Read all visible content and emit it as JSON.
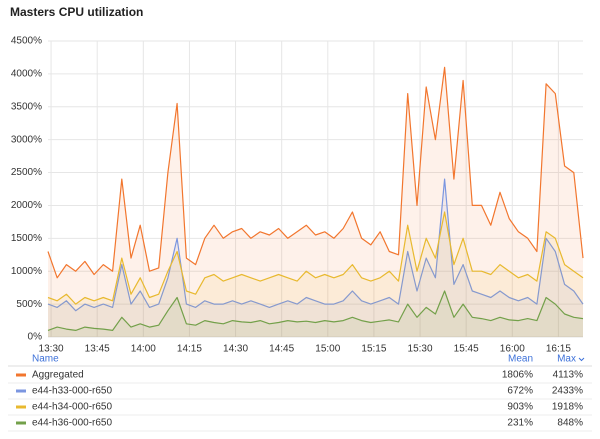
{
  "chart_data": {
    "type": "line",
    "title": "Masters CPU utilization",
    "grid": true,
    "fill_area": true,
    "x": [
      "13:29",
      "13:32",
      "13:35",
      "13:38",
      "13:41",
      "13:44",
      "13:47",
      "13:50",
      "13:53",
      "13:56",
      "13:59",
      "14:02",
      "14:05",
      "14:08",
      "14:11",
      "14:14",
      "14:17",
      "14:20",
      "14:23",
      "14:26",
      "14:29",
      "14:32",
      "14:35",
      "14:38",
      "14:41",
      "14:44",
      "14:47",
      "14:50",
      "14:53",
      "14:56",
      "14:59",
      "15:02",
      "15:05",
      "15:08",
      "15:11",
      "15:14",
      "15:17",
      "15:20",
      "15:23",
      "15:26",
      "15:29",
      "15:32",
      "15:35",
      "15:38",
      "15:41",
      "15:44",
      "15:47",
      "15:50",
      "15:53",
      "15:56",
      "15:59",
      "16:02",
      "16:05",
      "16:08",
      "16:11",
      "16:14",
      "16:17",
      "16:20",
      "16:23"
    ],
    "xlim": [
      "13:29",
      "16:23"
    ],
    "xticks": [
      "13:30",
      "13:45",
      "14:00",
      "14:15",
      "14:30",
      "14:45",
      "15:00",
      "15:15",
      "15:30",
      "15:45",
      "16:00",
      "16:15"
    ],
    "ylim": [
      0,
      4500
    ],
    "yticks": [
      {
        "value": 0,
        "label": "0%"
      },
      {
        "value": 500,
        "label": "500%"
      },
      {
        "value": 1000,
        "label": "1000%"
      },
      {
        "value": 1500,
        "label": "1500%"
      },
      {
        "value": 2000,
        "label": "2000%"
      },
      {
        "value": 2500,
        "label": "2500%"
      },
      {
        "value": 3000,
        "label": "3000%"
      },
      {
        "value": 3500,
        "label": "3500%"
      },
      {
        "value": 4000,
        "label": "4000%"
      },
      {
        "value": 4500,
        "label": "4500%"
      }
    ],
    "legend": {
      "columns": [
        "Name",
        "Mean",
        "Max"
      ]
    },
    "series": [
      {
        "name": "Aggregated",
        "color": "#f2762e",
        "mean": {
          "value": 1806,
          "label": "1806%"
        },
        "max": {
          "value": 4113,
          "label": "4113%"
        },
        "values": [
          1300,
          900,
          1100,
          1000,
          1150,
          950,
          1100,
          1000,
          2400,
          1200,
          1700,
          1000,
          1050,
          2500,
          3550,
          1200,
          1100,
          1500,
          1700,
          1500,
          1600,
          1650,
          1500,
          1600,
          1550,
          1650,
          1500,
          1600,
          1700,
          1550,
          1600,
          1500,
          1650,
          1900,
          1500,
          1400,
          1600,
          1300,
          1250,
          3700,
          2000,
          3800,
          3000,
          4100,
          2400,
          3900,
          2000,
          2000,
          1700,
          2200,
          1800,
          1600,
          1500,
          1300,
          3850,
          3700,
          2600,
          2500,
          1200
        ]
      },
      {
        "name": "e44-h33-000-r650",
        "color": "#7b96e0",
        "mean": {
          "value": 672,
          "label": "672%"
        },
        "max": {
          "value": 2433,
          "label": "2433%"
        },
        "values": [
          500,
          450,
          550,
          400,
          500,
          450,
          500,
          450,
          1100,
          500,
          700,
          450,
          500,
          900,
          1500,
          500,
          450,
          550,
          500,
          500,
          550,
          500,
          550,
          500,
          450,
          500,
          550,
          500,
          600,
          550,
          500,
          500,
          550,
          700,
          550,
          500,
          550,
          600,
          500,
          1300,
          700,
          1200,
          900,
          2400,
          800,
          1100,
          700,
          650,
          600,
          700,
          600,
          550,
          600,
          500,
          1500,
          1300,
          800,
          700,
          500
        ]
      },
      {
        "name": "e44-h34-000-r650",
        "color": "#e8b92f",
        "mean": {
          "value": 903,
          "label": "903%"
        },
        "max": {
          "value": 1918,
          "label": "1918%"
        },
        "values": [
          600,
          550,
          650,
          500,
          600,
          550,
          600,
          550,
          1200,
          650,
          900,
          600,
          650,
          1000,
          1300,
          700,
          650,
          900,
          950,
          850,
          900,
          950,
          900,
          850,
          900,
          950,
          900,
          850,
          1000,
          900,
          950,
          900,
          950,
          1100,
          900,
          850,
          900,
          1000,
          850,
          1700,
          1000,
          1500,
          1200,
          1900,
          1100,
          1500,
          1000,
          1000,
          950,
          1100,
          1000,
          900,
          950,
          850,
          1600,
          1500,
          1100,
          1000,
          900
        ]
      },
      {
        "name": "e44-h36-000-r650",
        "color": "#73a04a",
        "mean": {
          "value": 231,
          "label": "231%"
        },
        "max": {
          "value": 848,
          "label": "848%"
        },
        "values": [
          100,
          150,
          120,
          100,
          150,
          130,
          120,
          100,
          300,
          150,
          200,
          150,
          180,
          400,
          600,
          200,
          180,
          250,
          220,
          200,
          250,
          230,
          220,
          250,
          200,
          220,
          250,
          230,
          240,
          220,
          250,
          230,
          250,
          300,
          250,
          220,
          240,
          260,
          230,
          500,
          300,
          450,
          350,
          700,
          300,
          500,
          300,
          280,
          250,
          300,
          260,
          250,
          280,
          250,
          600,
          500,
          350,
          300,
          280
        ]
      }
    ]
  }
}
